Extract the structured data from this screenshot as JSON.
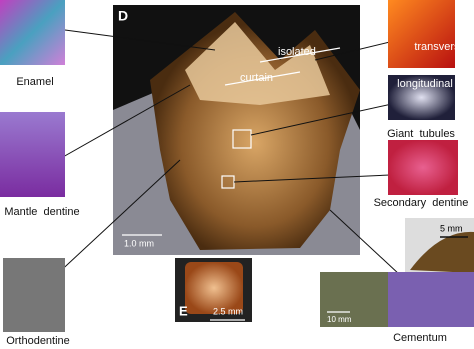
{
  "main_panel": {
    "label": "D",
    "annotations": [
      "isolated",
      "curtain"
    ],
    "scale_bar": "1.0 mm"
  },
  "insets": {
    "enamel": "Enamel",
    "mantle_dentine": "Mantle  dentine",
    "orthodentine": "Orthodentine",
    "transverse": "transverse",
    "longitudinal": "longitudinal",
    "giant_tubules": "Giant  tubules",
    "secondary_dentine": "Secondary  dentine",
    "cementum": "Cementum",
    "cementum_scale_small": "10 mm",
    "cementum_scale_large": "5 mm"
  },
  "panel_e": {
    "label": "E",
    "scale_bar": "2.5 mm"
  }
}
